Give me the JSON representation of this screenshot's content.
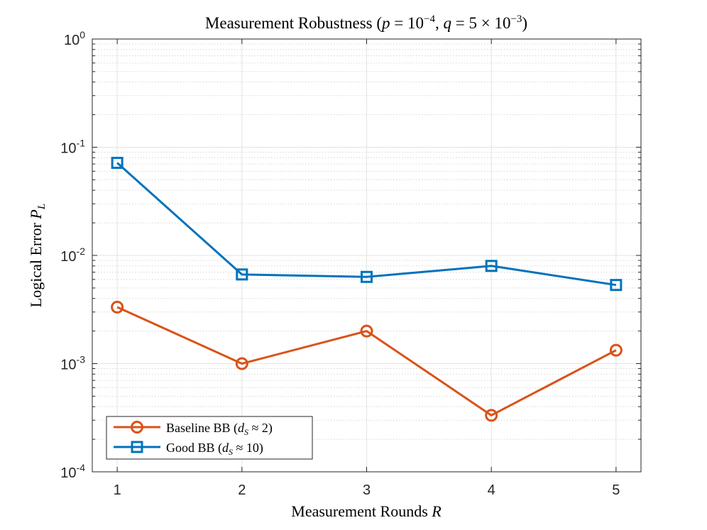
{
  "chart_data": {
    "type": "line",
    "title": "Measurement Robustness (p = 10⁻⁴, q = 5 × 10⁻³)",
    "xlabel": "Measurement Rounds R",
    "ylabel": "Logical Error P_L",
    "x": [
      1,
      2,
      3,
      4,
      5
    ],
    "xlim": [
      0.8,
      5.2
    ],
    "ylim": [
      0.0001,
      1
    ],
    "yscale": "log",
    "grid": true,
    "legend_position": "bottom-left",
    "x_tick_labels": [
      "1",
      "2",
      "3",
      "4",
      "5"
    ],
    "y_ticks": [
      {
        "mantissa": "10",
        "exponent": "-4",
        "value": 0.0001
      },
      {
        "mantissa": "10",
        "exponent": "-3",
        "value": 0.001
      },
      {
        "mantissa": "10",
        "exponent": "-2",
        "value": 0.01
      },
      {
        "mantissa": "10",
        "exponent": "-1",
        "value": 0.1
      },
      {
        "mantissa": "10",
        "exponent": "0",
        "value": 1
      }
    ],
    "series": [
      {
        "name": "Baseline BB (d_S ≈ 2)",
        "label_text": "Baseline BB (",
        "label_var": "d",
        "label_sub": "S",
        "label_rest": " ≈ 2)",
        "color": "#D95319",
        "marker": "circle",
        "values": [
          0.00333,
          0.001,
          0.002,
          0.000333,
          0.00133
        ]
      },
      {
        "name": "Good BB (d_S ≈ 10)",
        "label_text": "Good BB (",
        "label_var": "d",
        "label_sub": "S",
        "label_rest": " ≈ 10)",
        "color": "#0072BD",
        "marker": "square",
        "values": [
          0.0717,
          0.00667,
          0.00633,
          0.008,
          0.00533
        ]
      }
    ]
  }
}
